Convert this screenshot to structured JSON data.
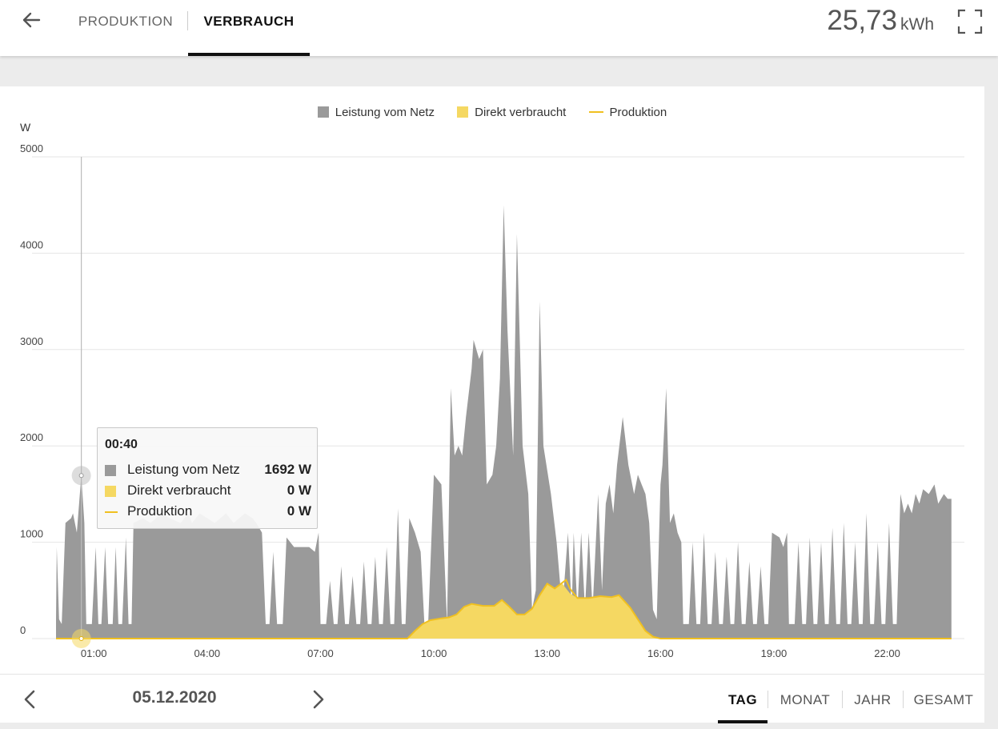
{
  "header": {
    "tabs": [
      {
        "label": "PRODUKTION",
        "active": false
      },
      {
        "label": "VERBRAUCH",
        "active": true
      }
    ],
    "total_value": "25,73",
    "total_unit": "kWh",
    "icons": {
      "back": "arrow-left-icon",
      "fullscreen": "fullscreen-icon"
    }
  },
  "legend": [
    {
      "label": "Leistung vom Netz",
      "color": "#9a9a9a",
      "shape": "square"
    },
    {
      "label": "Direkt verbraucht",
      "color": "#f5d862",
      "shape": "square"
    },
    {
      "label": "Produktion",
      "color": "#f0c020",
      "shape": "line"
    }
  ],
  "tooltip": {
    "time": "00:40",
    "rows": [
      {
        "label": "Leistung vom Netz",
        "value": "1692 W"
      },
      {
        "label": "Direkt verbraucht",
        "value": "0 W"
      },
      {
        "label": "Produktion",
        "value": "0 W"
      }
    ]
  },
  "chart_data": {
    "type": "area",
    "ylabel": "W",
    "ylim": [
      0,
      5000
    ],
    "yticks": [
      0,
      1000,
      2000,
      3000,
      4000,
      5000
    ],
    "xlim": [
      0,
      24
    ],
    "xticks": [
      {
        "value": 1,
        "label": "01:00"
      },
      {
        "value": 4,
        "label": "04:00"
      },
      {
        "value": 7,
        "label": "07:00"
      },
      {
        "value": 10,
        "label": "10:00"
      },
      {
        "value": 13,
        "label": "13:00"
      },
      {
        "value": 16,
        "label": "16:00"
      },
      {
        "value": 19,
        "label": "19:00"
      },
      {
        "value": 22,
        "label": "22:00"
      }
    ],
    "grid": true,
    "legend_position": "top-center",
    "crosshair_x": 0.67,
    "series": [
      {
        "name": "Leistung vom Netz",
        "type": "area",
        "color": "#9a9a9a",
        "points": [
          [
            0.0,
            200
          ],
          [
            0.02,
            950
          ],
          [
            0.08,
            200
          ],
          [
            0.15,
            150
          ],
          [
            0.25,
            1200
          ],
          [
            0.4,
            1250
          ],
          [
            0.45,
            1300
          ],
          [
            0.55,
            1100
          ],
          [
            0.67,
            1692
          ],
          [
            0.75,
            1200
          ],
          [
            0.8,
            150
          ],
          [
            0.95,
            150
          ],
          [
            1.05,
            950
          ],
          [
            1.12,
            150
          ],
          [
            1.2,
            150
          ],
          [
            1.3,
            950
          ],
          [
            1.38,
            150
          ],
          [
            1.5,
            150
          ],
          [
            1.58,
            950
          ],
          [
            1.65,
            150
          ],
          [
            1.75,
            150
          ],
          [
            1.85,
            1050
          ],
          [
            1.92,
            150
          ],
          [
            2.0,
            150
          ],
          [
            2.05,
            1200
          ],
          [
            2.3,
            1250
          ],
          [
            2.5,
            1200
          ],
          [
            2.8,
            1300
          ],
          [
            3.0,
            1250
          ],
          [
            3.3,
            1200
          ],
          [
            3.5,
            1300
          ],
          [
            3.6,
            1200
          ],
          [
            3.8,
            1300
          ],
          [
            4.0,
            1250
          ],
          [
            4.2,
            1200
          ],
          [
            4.5,
            1300
          ],
          [
            4.7,
            1200
          ],
          [
            5.0,
            1300
          ],
          [
            5.2,
            1250
          ],
          [
            5.3,
            1200
          ],
          [
            5.45,
            1100
          ],
          [
            5.55,
            150
          ],
          [
            5.65,
            150
          ],
          [
            5.75,
            900
          ],
          [
            5.85,
            150
          ],
          [
            6.0,
            150
          ],
          [
            6.1,
            1050
          ],
          [
            6.3,
            950
          ],
          [
            6.5,
            950
          ],
          [
            6.7,
            950
          ],
          [
            6.85,
            900
          ],
          [
            6.95,
            1100
          ],
          [
            7.0,
            150
          ],
          [
            7.15,
            150
          ],
          [
            7.25,
            600
          ],
          [
            7.35,
            150
          ],
          [
            7.45,
            150
          ],
          [
            7.55,
            750
          ],
          [
            7.65,
            150
          ],
          [
            7.75,
            150
          ],
          [
            7.85,
            650
          ],
          [
            7.95,
            150
          ],
          [
            8.05,
            150
          ],
          [
            8.15,
            800
          ],
          [
            8.25,
            150
          ],
          [
            8.35,
            150
          ],
          [
            8.45,
            850
          ],
          [
            8.55,
            150
          ],
          [
            8.65,
            150
          ],
          [
            8.75,
            950
          ],
          [
            8.85,
            150
          ],
          [
            8.95,
            150
          ],
          [
            9.05,
            1350
          ],
          [
            9.15,
            150
          ],
          [
            9.25,
            150
          ],
          [
            9.35,
            1250
          ],
          [
            9.5,
            1100
          ],
          [
            9.65,
            900
          ],
          [
            9.75,
            150
          ],
          [
            9.85,
            150
          ],
          [
            10.0,
            1700
          ],
          [
            10.2,
            1600
          ],
          [
            10.35,
            150
          ],
          [
            10.45,
            2600
          ],
          [
            10.55,
            1900
          ],
          [
            10.65,
            2000
          ],
          [
            10.75,
            1900
          ],
          [
            10.85,
            2300
          ],
          [
            11.0,
            2800
          ],
          [
            11.05,
            3100
          ],
          [
            11.2,
            2900
          ],
          [
            11.3,
            3000
          ],
          [
            11.4,
            1600
          ],
          [
            11.55,
            1700
          ],
          [
            11.65,
            2000
          ],
          [
            11.75,
            2700
          ],
          [
            11.85,
            4500
          ],
          [
            11.95,
            3200
          ],
          [
            12.1,
            1900
          ],
          [
            12.2,
            4200
          ],
          [
            12.35,
            2000
          ],
          [
            12.5,
            1500
          ],
          [
            12.6,
            300
          ],
          [
            12.7,
            500
          ],
          [
            12.8,
            3500
          ],
          [
            12.9,
            2000
          ],
          [
            13.1,
            1500
          ],
          [
            13.25,
            1000
          ],
          [
            13.4,
            300
          ],
          [
            13.55,
            1100
          ],
          [
            13.65,
            300
          ],
          [
            13.7,
            1100
          ],
          [
            13.8,
            300
          ],
          [
            13.9,
            1100
          ],
          [
            14.0,
            300
          ],
          [
            14.1,
            1100
          ],
          [
            14.2,
            300
          ],
          [
            14.35,
            1500
          ],
          [
            14.45,
            500
          ],
          [
            14.55,
            1400
          ],
          [
            14.65,
            1600
          ],
          [
            14.75,
            1300
          ],
          [
            14.85,
            1800
          ],
          [
            15.0,
            2300
          ],
          [
            15.15,
            1800
          ],
          [
            15.3,
            1500
          ],
          [
            15.4,
            1700
          ],
          [
            15.5,
            1600
          ],
          [
            15.6,
            1500
          ],
          [
            15.7,
            1200
          ],
          [
            15.8,
            300
          ],
          [
            15.9,
            200
          ],
          [
            16.0,
            1600
          ],
          [
            16.05,
            1800
          ],
          [
            16.15,
            2600
          ],
          [
            16.25,
            1200
          ],
          [
            16.35,
            1300
          ],
          [
            16.45,
            1100
          ],
          [
            16.55,
            1000
          ],
          [
            16.6,
            150
          ],
          [
            16.75,
            150
          ],
          [
            16.85,
            1000
          ],
          [
            16.95,
            150
          ],
          [
            17.05,
            150
          ],
          [
            17.15,
            1100
          ],
          [
            17.25,
            150
          ],
          [
            17.35,
            150
          ],
          [
            17.45,
            900
          ],
          [
            17.55,
            150
          ],
          [
            17.65,
            150
          ],
          [
            17.75,
            850
          ],
          [
            17.85,
            150
          ],
          [
            17.95,
            150
          ],
          [
            18.05,
            1000
          ],
          [
            18.15,
            150
          ],
          [
            18.25,
            150
          ],
          [
            18.35,
            800
          ],
          [
            18.45,
            150
          ],
          [
            18.55,
            150
          ],
          [
            18.65,
            750
          ],
          [
            18.75,
            150
          ],
          [
            18.85,
            150
          ],
          [
            18.95,
            1100
          ],
          [
            19.15,
            1050
          ],
          [
            19.25,
            950
          ],
          [
            19.35,
            1100
          ],
          [
            19.4,
            150
          ],
          [
            19.55,
            150
          ],
          [
            19.65,
            1000
          ],
          [
            19.75,
            150
          ],
          [
            19.85,
            150
          ],
          [
            19.95,
            1050
          ],
          [
            20.05,
            150
          ],
          [
            20.15,
            150
          ],
          [
            20.25,
            1000
          ],
          [
            20.35,
            150
          ],
          [
            20.45,
            150
          ],
          [
            20.55,
            1150
          ],
          [
            20.65,
            150
          ],
          [
            20.75,
            150
          ],
          [
            20.85,
            1200
          ],
          [
            20.95,
            150
          ],
          [
            21.05,
            150
          ],
          [
            21.15,
            1000
          ],
          [
            21.25,
            150
          ],
          [
            21.35,
            150
          ],
          [
            21.45,
            1300
          ],
          [
            21.55,
            150
          ],
          [
            21.65,
            150
          ],
          [
            21.75,
            1000
          ],
          [
            21.85,
            150
          ],
          [
            21.95,
            150
          ],
          [
            22.05,
            1200
          ],
          [
            22.15,
            150
          ],
          [
            22.25,
            150
          ],
          [
            22.35,
            1500
          ],
          [
            22.45,
            1300
          ],
          [
            22.55,
            1400
          ],
          [
            22.65,
            1300
          ],
          [
            22.75,
            1500
          ],
          [
            22.85,
            1400
          ],
          [
            22.95,
            1550
          ],
          [
            23.1,
            1500
          ],
          [
            23.25,
            1600
          ],
          [
            23.35,
            1400
          ],
          [
            23.5,
            1500
          ],
          [
            23.6,
            1450
          ],
          [
            23.7,
            1450
          ]
        ]
      },
      {
        "name": "Direkt verbraucht",
        "type": "area",
        "color": "#f5d862",
        "points": [
          [
            9.3,
            0
          ],
          [
            9.5,
            80
          ],
          [
            9.7,
            150
          ],
          [
            9.9,
            190
          ],
          [
            10.2,
            210
          ],
          [
            10.4,
            220
          ],
          [
            10.6,
            250
          ],
          [
            10.8,
            330
          ],
          [
            11.0,
            360
          ],
          [
            11.3,
            340
          ],
          [
            11.6,
            340
          ],
          [
            11.8,
            400
          ],
          [
            12.0,
            330
          ],
          [
            12.2,
            250
          ],
          [
            12.4,
            250
          ],
          [
            12.6,
            310
          ],
          [
            12.8,
            450
          ],
          [
            13.0,
            570
          ],
          [
            13.2,
            520
          ],
          [
            13.4,
            570
          ],
          [
            13.6,
            470
          ],
          [
            13.8,
            420
          ],
          [
            14.1,
            420
          ],
          [
            14.4,
            440
          ],
          [
            14.7,
            430
          ],
          [
            14.9,
            450
          ],
          [
            15.2,
            320
          ],
          [
            15.4,
            200
          ],
          [
            15.6,
            80
          ],
          [
            15.8,
            20
          ],
          [
            16.0,
            0
          ]
        ]
      },
      {
        "name": "Produktion",
        "type": "line",
        "color": "#f0c020",
        "points": [
          [
            0,
            0
          ],
          [
            9.3,
            0
          ],
          [
            9.5,
            80
          ],
          [
            9.7,
            150
          ],
          [
            9.9,
            190
          ],
          [
            10.2,
            210
          ],
          [
            10.4,
            220
          ],
          [
            10.6,
            250
          ],
          [
            10.8,
            330
          ],
          [
            11.0,
            360
          ],
          [
            11.3,
            340
          ],
          [
            11.6,
            340
          ],
          [
            11.8,
            400
          ],
          [
            12.0,
            330
          ],
          [
            12.2,
            250
          ],
          [
            12.4,
            250
          ],
          [
            12.6,
            310
          ],
          [
            12.8,
            450
          ],
          [
            13.0,
            570
          ],
          [
            13.2,
            520
          ],
          [
            13.4,
            580
          ],
          [
            13.5,
            610
          ],
          [
            13.6,
            520
          ],
          [
            13.8,
            420
          ],
          [
            14.1,
            420
          ],
          [
            14.4,
            440
          ],
          [
            14.7,
            430
          ],
          [
            14.9,
            450
          ],
          [
            15.2,
            320
          ],
          [
            15.4,
            200
          ],
          [
            15.6,
            80
          ],
          [
            15.8,
            20
          ],
          [
            16.0,
            0
          ],
          [
            23.7,
            0
          ]
        ]
      }
    ]
  },
  "footer": {
    "date": "05.12.2020",
    "ranges": [
      {
        "label": "TAG",
        "active": true
      },
      {
        "label": "MONAT",
        "active": false
      },
      {
        "label": "JAHR",
        "active": false
      },
      {
        "label": "GESAMT",
        "active": false
      }
    ],
    "icons": {
      "prev": "chevron-left-icon",
      "next": "chevron-right-icon"
    }
  }
}
